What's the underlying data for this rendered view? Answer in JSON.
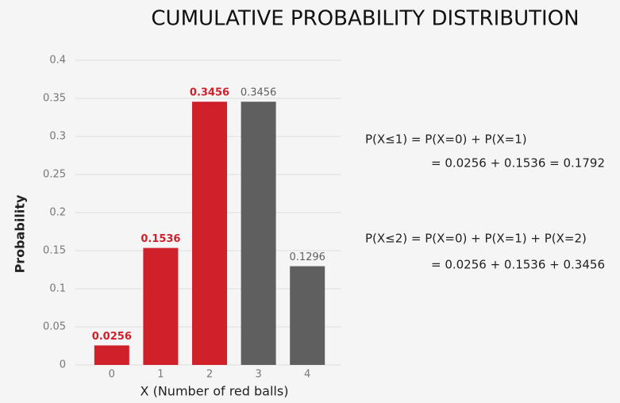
{
  "chart_data": {
    "type": "bar",
    "title": "CUMULATIVE PROBABILITY DISTRIBUTION",
    "x_label": "X (Number of red balls)",
    "y_label": "Probability",
    "categories": [
      "0",
      "1",
      "2",
      "3",
      "4"
    ],
    "values": [
      0.0256,
      0.1536,
      0.3456,
      0.3456,
      0.1296
    ],
    "colors": [
      "#d0202a",
      "#d0202a",
      "#d0202a",
      "#5f5f5f",
      "#5f5f5f"
    ],
    "ylim": [
      0,
      0.4
    ],
    "yticks": [
      0,
      0.05,
      0.1,
      0.15,
      0.2,
      0.25,
      0.3,
      0.35,
      0.4
    ],
    "grid": true,
    "annotations": [
      "P(X≤1) = P(X=0) + P(X=1)",
      "= 0.0256 + 0.1536 = 0.1792",
      "P(X≤2) = P(X=0) + P(X=1) + P(X=2)",
      "= 0.0256 + 0.1536 + 0.3456"
    ]
  }
}
